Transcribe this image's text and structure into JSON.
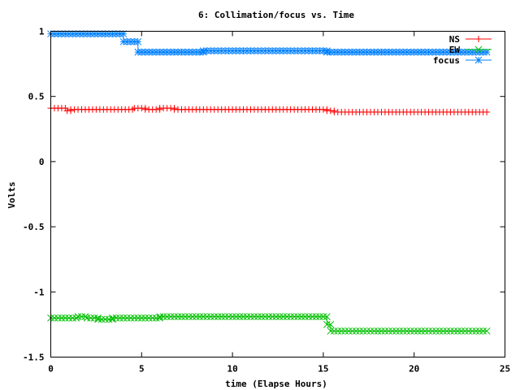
{
  "chart_data": {
    "type": "line",
    "title": "6: Collimation/focus vs. Time",
    "xlabel": "time (Elapse Hours)",
    "ylabel": "Volts",
    "xlim": [
      0,
      25
    ],
    "ylim": [
      -1.5,
      1
    ],
    "x_ticks": [
      0,
      5,
      10,
      15,
      20,
      25
    ],
    "x_tick_labels": [
      "0",
      "5",
      "10",
      "15",
      "20",
      "25"
    ],
    "y_ticks": [
      1,
      0.5,
      0,
      -0.5,
      -1,
      -1.5
    ],
    "y_tick_labels": [
      "1",
      "0.5",
      "0",
      "-0.5",
      "-1",
      "-1.5"
    ],
    "grid": false,
    "legend_position": "top-right",
    "series": [
      {
        "name": "NS",
        "color": "#ff0000",
        "marker": "plus",
        "segments": [
          {
            "x_start": 0,
            "x_end": 0.9,
            "y": 0.41
          },
          {
            "x_start": 0.9,
            "x_end": 1.1,
            "y": 0.39
          },
          {
            "x_start": 1.1,
            "x_end": 4.6,
            "y": 0.4
          },
          {
            "x_start": 4.6,
            "x_end": 5.2,
            "y": 0.41
          },
          {
            "x_start": 5.2,
            "x_end": 6.0,
            "y": 0.4
          },
          {
            "x_start": 6.0,
            "x_end": 6.8,
            "y": 0.41
          },
          {
            "x_start": 6.8,
            "x_end": 15.2,
            "y": 0.4
          },
          {
            "x_start": 15.2,
            "x_end": 15.6,
            "y": 0.39
          },
          {
            "x_start": 15.6,
            "x_end": 24.0,
            "y": 0.38
          }
        ]
      },
      {
        "name": "EW",
        "color": "#00c000",
        "marker": "cross",
        "segments": [
          {
            "x_start": 0,
            "x_end": 1.5,
            "y": -1.2
          },
          {
            "x_start": 1.5,
            "x_end": 2.0,
            "y": -1.19
          },
          {
            "x_start": 2.0,
            "x_end": 2.6,
            "y": -1.2
          },
          {
            "x_start": 2.6,
            "x_end": 3.4,
            "y": -1.21
          },
          {
            "x_start": 3.4,
            "x_end": 6.0,
            "y": -1.2
          },
          {
            "x_start": 6.0,
            "x_end": 15.2,
            "y": -1.19
          },
          {
            "x_start": 15.2,
            "x_end": 15.4,
            "y": -1.25
          },
          {
            "x_start": 15.4,
            "x_end": 24.0,
            "y": -1.3
          }
        ]
      },
      {
        "name": "focus",
        "color": "#0080ff",
        "marker": "star",
        "segments": [
          {
            "x_start": 0,
            "x_end": 4.0,
            "y": 0.98
          },
          {
            "x_start": 4.0,
            "x_end": 4.8,
            "y": 0.92
          },
          {
            "x_start": 4.8,
            "x_end": 8.4,
            "y": 0.84
          },
          {
            "x_start": 8.4,
            "x_end": 15.2,
            "y": 0.85
          },
          {
            "x_start": 15.2,
            "x_end": 24.0,
            "y": 0.84
          }
        ]
      }
    ]
  }
}
